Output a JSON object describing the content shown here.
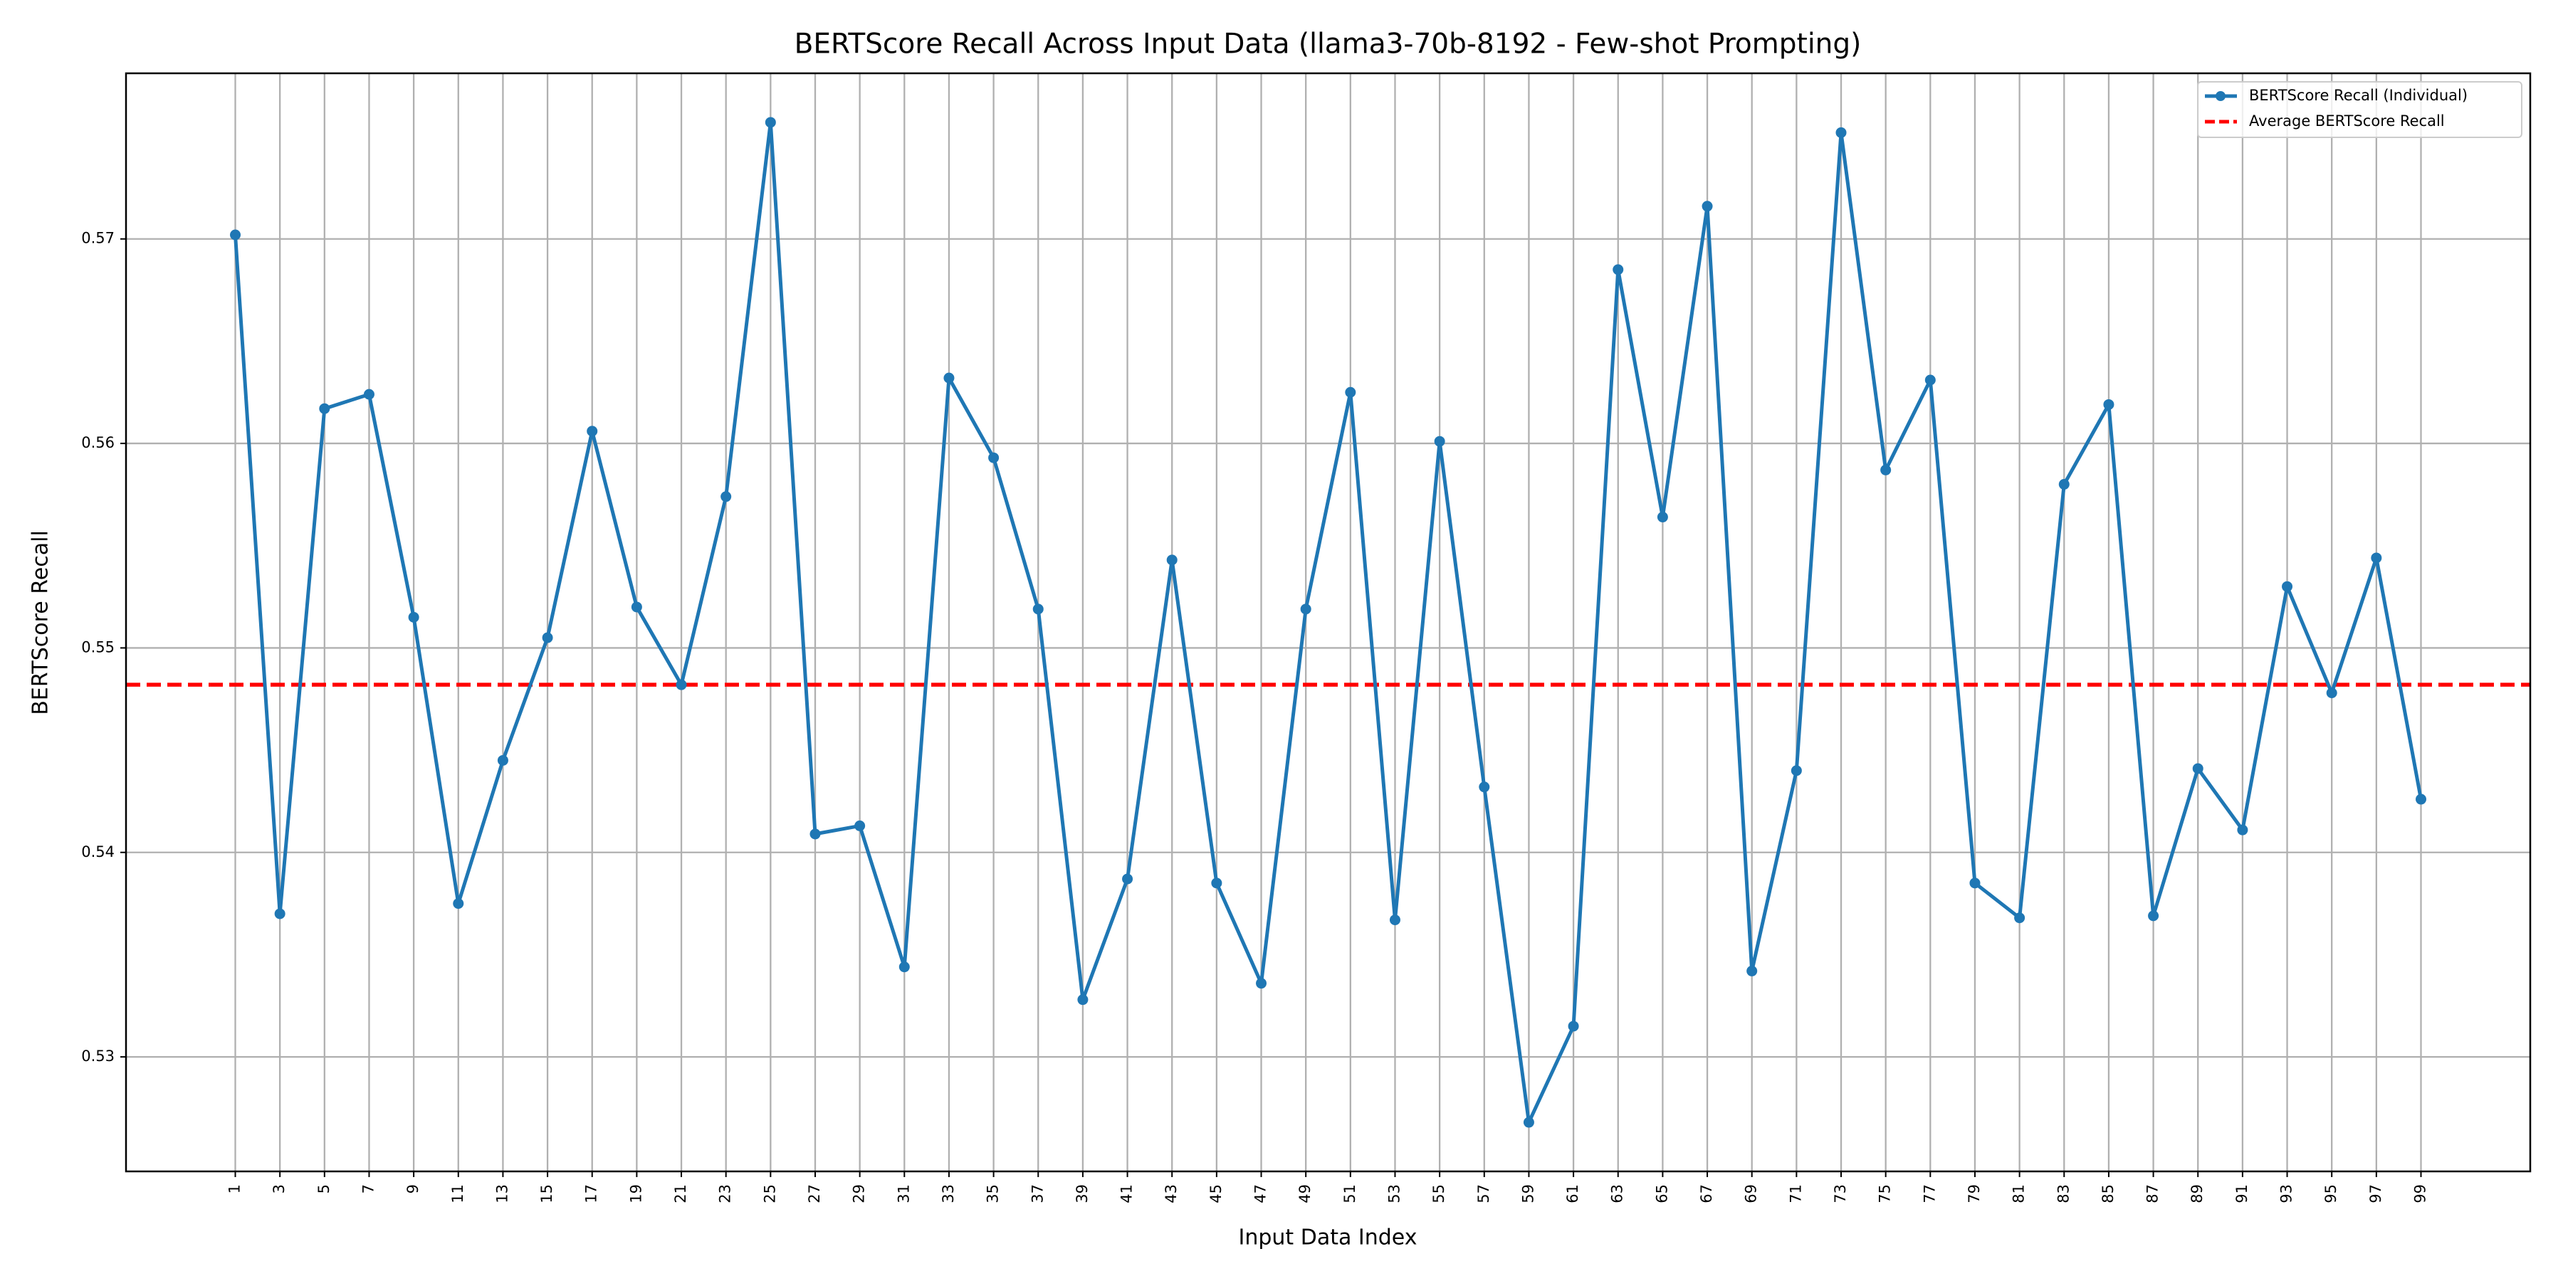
{
  "chart_data": {
    "type": "line",
    "title": "BERTScore Recall Across Input Data (llama3-70b-8192 - Few-shot Prompting)",
    "xlabel": "Input Data Index",
    "ylabel": "BERTScore Recall",
    "x": [
      1,
      3,
      5,
      7,
      9,
      11,
      13,
      15,
      17,
      19,
      21,
      23,
      25,
      27,
      29,
      31,
      33,
      35,
      37,
      39,
      41,
      43,
      45,
      47,
      49,
      51,
      53,
      55,
      57,
      59,
      61,
      63,
      65,
      67,
      69,
      71,
      73,
      75,
      77,
      79,
      81,
      83,
      85,
      87,
      89,
      91,
      93,
      95,
      97,
      99
    ],
    "series": [
      {
        "name": "BERTScore Recall (Individual)",
        "color": "#1f77b4",
        "values": [
          0.5702,
          0.537,
          0.5617,
          0.5624,
          0.5515,
          0.5375,
          0.5445,
          0.5505,
          0.5606,
          0.552,
          0.5482,
          0.5574,
          0.5757,
          0.5409,
          0.5413,
          0.5344,
          0.5632,
          0.5593,
          0.5519,
          0.5328,
          0.5387,
          0.5543,
          0.5385,
          0.5336,
          0.5519,
          0.5625,
          0.5367,
          0.5601,
          0.5432,
          0.5268,
          0.5315,
          0.5685,
          0.5564,
          0.5716,
          0.5342,
          0.544,
          0.5752,
          0.5587,
          0.5631,
          0.5385,
          0.5368,
          0.558,
          0.5619,
          0.5369,
          0.5441,
          0.5411,
          0.553,
          0.5478,
          0.5544,
          0.5426
        ]
      }
    ],
    "average": {
      "name": "Average BERTScore Recall",
      "color": "#ff0000",
      "value": 0.5482
    },
    "xlim": [
      -3.9,
      103.9
    ],
    "ylim": [
      0.5244,
      0.5781
    ],
    "xticks": [
      1,
      3,
      5,
      7,
      9,
      11,
      13,
      15,
      17,
      19,
      21,
      23,
      25,
      27,
      29,
      31,
      33,
      35,
      37,
      39,
      41,
      43,
      45,
      47,
      49,
      51,
      53,
      55,
      57,
      59,
      61,
      63,
      65,
      67,
      69,
      71,
      73,
      75,
      77,
      79,
      81,
      83,
      85,
      87,
      89,
      91,
      93,
      95,
      97,
      99
    ],
    "yticks": [
      0.53,
      0.54,
      0.55,
      0.56,
      0.57
    ],
    "grid": true,
    "legend": "upper right"
  }
}
